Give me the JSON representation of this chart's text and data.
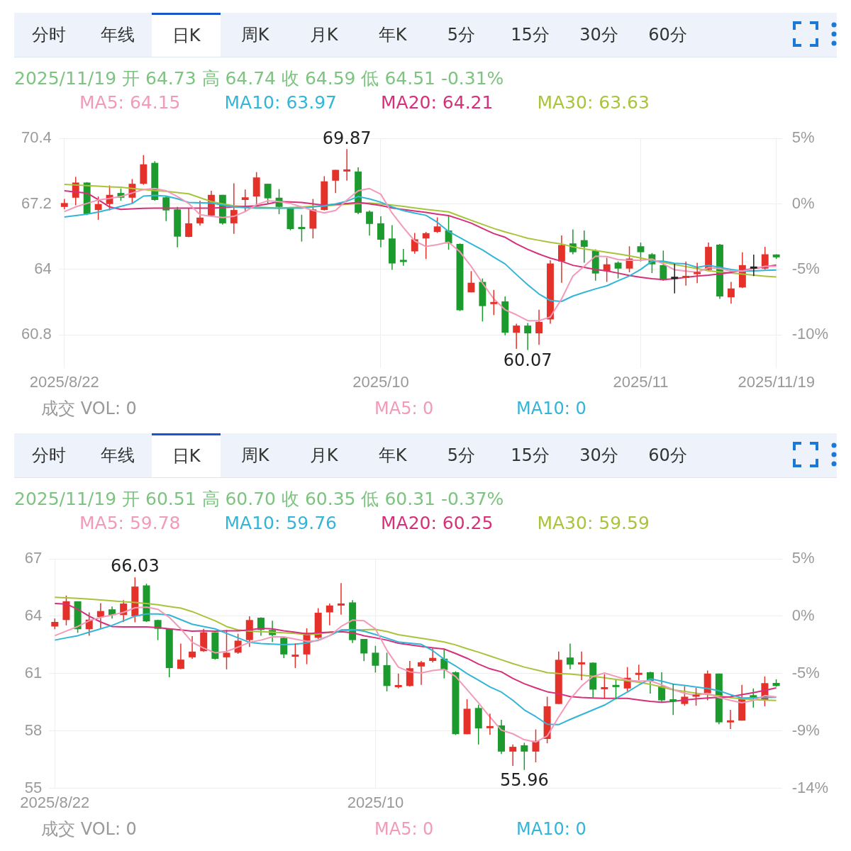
{
  "chart_data": [
    {
      "type": "candlestick",
      "title": "2025/11/19 开 64.73 高 64.74 收 64.59 低 64.51 -0.31%",
      "categories": [
        "2025/8/22",
        null,
        null,
        null,
        null,
        null,
        null,
        null,
        null,
        null,
        null,
        null,
        null,
        null,
        null,
        null,
        null,
        null,
        null,
        null,
        null,
        null,
        null,
        null,
        null,
        null,
        null,
        null,
        "2025/10",
        null,
        null,
        null,
        null,
        null,
        null,
        null,
        null,
        null,
        null,
        null,
        null,
        null,
        null,
        null,
        null,
        null,
        null,
        null,
        null,
        null,
        null,
        "2025/11",
        null,
        null,
        null,
        null,
        null,
        null,
        null,
        null,
        null,
        null,
        null,
        "2025/11/19"
      ],
      "ohlc": [
        [
          67.05,
          67.44,
          66.94,
          67.24
        ],
        [
          67.5,
          68.52,
          67.13,
          68.24
        ],
        [
          68.24,
          68.26,
          66.65,
          66.7
        ],
        [
          66.9,
          67.56,
          66.42,
          67.19
        ],
        [
          67.19,
          68.1,
          66.88,
          67.64
        ],
        [
          67.73,
          67.95,
          67.35,
          67.5
        ],
        [
          67.5,
          68.41,
          67.22,
          68.18
        ],
        [
          68.18,
          69.58,
          68.13,
          69.13
        ],
        [
          69.2,
          69.28,
          67.35,
          67.39
        ],
        [
          67.52,
          67.56,
          66.36,
          66.88
        ],
        [
          66.93,
          67.05,
          65.08,
          65.6
        ],
        [
          65.59,
          67.01,
          65.57,
          66.25
        ],
        [
          66.25,
          67.35,
          66.14,
          66.53
        ],
        [
          66.63,
          67.84,
          66.59,
          67.64
        ],
        [
          67.64,
          67.64,
          66.19,
          66.25
        ],
        [
          66.25,
          68.2,
          65.74,
          66.9
        ],
        [
          67.39,
          67.9,
          66.82,
          67.52
        ],
        [
          67.56,
          68.75,
          67.05,
          68.49
        ],
        [
          68.18,
          68.18,
          67.22,
          67.47
        ],
        [
          67.5,
          67.92,
          66.7,
          67.05
        ],
        [
          67.02,
          67.05,
          65.91,
          65.97
        ],
        [
          66.03,
          66.67,
          65.36,
          66.01
        ],
        [
          65.99,
          67.44,
          65.51,
          66.93
        ],
        [
          66.9,
          68.55,
          66.88,
          68.3
        ],
        [
          68.33,
          68.86,
          67.73,
          68.86
        ],
        [
          68.82,
          69.87,
          68.33,
          68.84
        ],
        [
          68.78,
          68.98,
          66.7,
          66.76
        ],
        [
          66.82,
          66.88,
          65.65,
          66.22
        ],
        [
          66.25,
          66.59,
          65.08,
          65.45
        ],
        [
          65.51,
          66.16,
          63.98,
          64.29
        ],
        [
          64.43,
          65.0,
          64.18,
          64.4
        ],
        [
          64.88,
          65.78,
          64.77,
          65.47
        ],
        [
          65.51,
          65.83,
          64.51,
          65.77
        ],
        [
          65.83,
          66.54,
          65.78,
          66.1
        ],
        [
          65.9,
          66.61,
          64.96,
          65.27
        ],
        [
          65.24,
          65.27,
          61.97,
          62.01
        ],
        [
          62.88,
          63.92,
          62.88,
          63.35
        ],
        [
          63.39,
          63.56,
          61.46,
          62.21
        ],
        [
          62.34,
          63.0,
          61.77,
          62.38
        ],
        [
          62.44,
          62.68,
          60.79,
          60.91
        ],
        [
          60.91,
          61.35,
          60.12,
          61.26
        ],
        [
          61.26,
          61.38,
          60.07,
          60.88
        ],
        [
          60.88,
          62.03,
          60.32,
          61.44
        ],
        [
          61.56,
          64.45,
          61.35,
          64.29
        ],
        [
          64.39,
          65.66,
          63.35,
          65.19
        ],
        [
          65.27,
          65.95,
          64.74,
          64.84
        ],
        [
          65.43,
          65.9,
          64.33,
          65.1
        ],
        [
          64.92,
          64.98,
          63.45,
          63.8
        ],
        [
          63.92,
          64.57,
          63.39,
          64.25
        ],
        [
          64.33,
          64.39,
          63.56,
          64.04
        ],
        [
          64.04,
          65.13,
          63.86,
          64.53
        ],
        [
          65.13,
          65.31,
          64.39,
          64.84
        ],
        [
          64.74,
          64.8,
          63.82,
          64.25
        ],
        [
          64.21,
          64.92,
          63.45,
          63.47
        ],
        [
          63.58,
          64.27,
          62.83,
          63.6
        ],
        [
          63.59,
          64.39,
          63.21,
          63.68
        ],
        [
          63.8,
          64.33,
          63.33,
          63.84
        ],
        [
          63.98,
          65.31,
          63.92,
          65.1
        ],
        [
          65.21,
          65.24,
          62.56,
          62.68
        ],
        [
          62.64,
          63.39,
          62.33,
          63.07
        ],
        [
          63.12,
          64.84,
          63.09,
          64.21
        ],
        [
          64.08,
          64.72,
          63.68,
          64.1
        ],
        [
          64.04,
          65.1,
          63.98,
          64.74
        ],
        [
          64.73,
          64.74,
          64.51,
          64.59
        ]
      ],
      "colors": [
        "#e4322b",
        "#e4322b",
        "#1c9a2e",
        "#e4322b",
        "#e4322b",
        "#1c9a2e",
        "#e4322b",
        "#e4322b",
        "#1c9a2e",
        "#1c9a2e",
        "#1c9a2e",
        "#e4322b",
        "#e4322b",
        "#e4322b",
        "#1c9a2e",
        "#e4322b",
        "#e4322b",
        "#e4322b",
        "#1c9a2e",
        "#1c9a2e",
        "#1c9a2e",
        "#1c9a2e",
        "#e4322b",
        "#e4322b",
        "#e4322b",
        "#e4322b",
        "#1c9a2e",
        "#1c9a2e",
        "#1c9a2e",
        "#1c9a2e",
        "#1c9a2e",
        "#e4322b",
        "#e4322b",
        "#e4322b",
        "#1c9a2e",
        "#1c9a2e",
        "#e4322b",
        "#1c9a2e",
        "#e4322b",
        "#1c9a2e",
        "#e4322b",
        "#1c9a2e",
        "#e4322b",
        "#e4322b",
        "#e4322b",
        "#1c9a2e",
        "#1c9a2e",
        "#1c9a2e",
        "#e4322b",
        "#1c9a2e",
        "#e4322b",
        "#1c9a2e",
        "#1c9a2e",
        "#1c9a2e",
        "#222222",
        "#e4322b",
        "#e4322b",
        "#e4322b",
        "#1c9a2e",
        "#e4322b",
        "#e4322b",
        "#222222",
        "#e4322b",
        "#1c9a2e"
      ],
      "series": [
        {
          "type": "line",
          "name": "MA5: 64.15",
          "color": "#f29ab8",
          "values": [
            66.82,
            67.05,
            67.22,
            67.39,
            67.47,
            67.56,
            67.73,
            67.9,
            67.95,
            67.84,
            67.56,
            67.22,
            66.67,
            66.59,
            66.53,
            66.59,
            66.82,
            67.16,
            67.35,
            67.31,
            67.22,
            67.05,
            66.88,
            66.76,
            66.88,
            67.39,
            67.84,
            67.95,
            67.67,
            66.75,
            66.04,
            65.39,
            65.12,
            65.21,
            65.33,
            64.86,
            64.15,
            63.33,
            62.56,
            62.03,
            61.79,
            61.5,
            61.5,
            61.68,
            62.56,
            63.68,
            64.15,
            64.65,
            64.63,
            64.48,
            64.45,
            64.45,
            64.51,
            64.27,
            63.98,
            63.92,
            63.86,
            64.09,
            64.04,
            63.92,
            63.92,
            64.04,
            64.15,
            64.15
          ]
        },
        {
          "type": "line",
          "name": "MA10: 63.97",
          "color": "#33b5d8",
          "values": [
            66.56,
            66.63,
            66.7,
            66.8,
            66.93,
            67.08,
            67.22,
            67.58,
            67.61,
            67.58,
            67.45,
            67.27,
            67.25,
            67.24,
            67.15,
            67.05,
            67.02,
            66.99,
            66.99,
            66.99,
            66.99,
            66.99,
            67.05,
            67.1,
            67.2,
            67.33,
            67.56,
            67.44,
            67.28,
            67.05,
            66.87,
            66.75,
            66.64,
            66.3,
            65.85,
            65.55,
            65.25,
            64.95,
            64.6,
            64.27,
            63.75,
            63.25,
            62.8,
            62.48,
            62.44,
            62.7,
            62.88,
            63.05,
            63.2,
            63.45,
            63.68,
            64.0,
            64.4,
            64.4,
            64.3,
            64.27,
            64.1,
            64.2,
            64.1,
            64.0,
            63.92,
            63.93,
            63.95,
            63.97
          ]
        },
        {
          "type": "line",
          "name": "MA20: 64.21",
          "color": "#d6307a",
          "values": [
            67.84,
            67.78,
            67.73,
            67.4,
            67.05,
            66.93,
            66.96,
            66.98,
            66.99,
            66.99,
            66.99,
            66.99,
            66.99,
            66.99,
            67.02,
            67.05,
            67.08,
            67.1,
            67.2,
            67.31,
            67.29,
            67.27,
            67.2,
            67.13,
            67.18,
            67.22,
            67.27,
            67.2,
            67.12,
            67.0,
            66.92,
            66.85,
            66.78,
            66.7,
            66.63,
            66.45,
            66.26,
            66.0,
            65.75,
            65.57,
            65.25,
            64.98,
            64.75,
            64.55,
            64.4,
            64.2,
            64.1,
            64.0,
            63.93,
            63.82,
            63.7,
            63.62,
            63.55,
            63.5,
            63.55,
            63.62,
            63.68,
            63.72,
            63.78,
            63.86,
            63.95,
            64.05,
            64.13,
            64.21
          ]
        },
        {
          "type": "line",
          "name": "MA30: 63.63",
          "color": "#a8c43a",
          "values": [
            68.15,
            68.12,
            68.09,
            68.06,
            68.03,
            68.01,
            67.95,
            67.9,
            67.85,
            67.81,
            67.75,
            67.69,
            67.5,
            67.31,
            67.2,
            67.1,
            67.07,
            67.05,
            67.02,
            66.99,
            67.02,
            67.05,
            67.08,
            67.1,
            67.14,
            67.18,
            67.22,
            67.24,
            67.2,
            67.14,
            67.08,
            67.0,
            66.93,
            66.87,
            66.81,
            66.6,
            66.4,
            66.2,
            66.0,
            65.83,
            65.68,
            65.52,
            65.42,
            65.32,
            65.24,
            65.1,
            65.0,
            64.92,
            64.84,
            64.76,
            64.66,
            64.56,
            64.44,
            64.34,
            64.24,
            64.14,
            64.04,
            63.94,
            63.88,
            63.82,
            63.77,
            63.72,
            63.67,
            63.63
          ]
        }
      ],
      "ylim": [
        59.2,
        70.4
      ],
      "yticks": [
        60.8,
        64,
        67.2,
        70.4
      ],
      "y2lim": [
        -11.9,
        4.76
      ],
      "y2ticks": [
        {
          "value": 4.76,
          "label": "5%"
        },
        {
          "value": 0,
          "label": "0%"
        },
        {
          "value": -4.76,
          "label": "-5%"
        },
        {
          "value": -9.52,
          "label": "-10%"
        }
      ],
      "grid": true,
      "legend": "top left",
      "marker": "none",
      "annotations": [
        "分时",
        "年线",
        "日K",
        "周K",
        "月K",
        "年K",
        "5分",
        "15分",
        "30分",
        "60分",
        {
          "text": "69.87",
          "y": 69.87
        },
        {
          "text": "60.07",
          "y": 60.07
        },
        "成交  VOL: 0",
        "MA5: 0",
        "MA10: 0"
      ]
    },
    {
      "type": "candlestick",
      "title": "2025/11/19 开 60.51 高 60.70 收 60.35 低 60.31 -0.37%",
      "categories": [
        "2025/8/22",
        null,
        null,
        null,
        null,
        null,
        null,
        null,
        null,
        null,
        null,
        null,
        null,
        null,
        null,
        null,
        null,
        null,
        null,
        null,
        null,
        null,
        null,
        null,
        null,
        null,
        null,
        null,
        "2025/10",
        null,
        null,
        null,
        null,
        null,
        null,
        null,
        null,
        null,
        null,
        null,
        null,
        null,
        null,
        null,
        null,
        null,
        null,
        null,
        null,
        null,
        null,
        null,
        null,
        null,
        null,
        null,
        null,
        null,
        null,
        null,
        null,
        null,
        null,
        null
      ],
      "ohlc": [
        [
          63.46,
          63.88,
          63.32,
          63.7
        ],
        [
          63.8,
          65.08,
          63.52,
          64.78
        ],
        [
          64.78,
          64.78,
          63.13,
          63.32
        ],
        [
          63.32,
          64.2,
          62.98,
          63.82
        ],
        [
          63.96,
          64.68,
          63.34,
          64.27
        ],
        [
          64.36,
          64.51,
          63.88,
          64.06
        ],
        [
          64.06,
          64.84,
          63.7,
          64.66
        ],
        [
          64.0,
          66.03,
          63.68,
          65.55
        ],
        [
          65.61,
          65.7,
          63.7,
          63.73
        ],
        [
          63.8,
          63.82,
          62.75,
          63.34
        ],
        [
          63.34,
          63.37,
          60.81,
          61.29
        ],
        [
          61.25,
          62.57,
          61.22,
          61.73
        ],
        [
          61.85,
          62.96,
          61.77,
          62.15
        ],
        [
          62.17,
          63.34,
          62.13,
          63.16
        ],
        [
          63.16,
          63.16,
          61.73,
          61.77
        ],
        [
          61.85,
          63.28,
          61.22,
          62.09
        ],
        [
          62.09,
          63.08,
          62.03,
          62.72
        ],
        [
          62.75,
          64.0,
          62.39,
          63.8
        ],
        [
          63.92,
          63.94,
          62.98,
          63.28
        ],
        [
          63.28,
          63.76,
          62.65,
          63.01
        ],
        [
          62.87,
          62.89,
          61.81,
          62.0
        ],
        [
          61.92,
          62.57,
          61.29,
          61.95
        ],
        [
          62.0,
          63.37,
          61.49,
          63.13
        ],
        [
          62.87,
          64.42,
          62.81,
          64.18
        ],
        [
          64.2,
          64.66,
          63.52,
          64.56
        ],
        [
          64.6,
          65.73,
          64.08,
          64.62
        ],
        [
          64.72,
          64.84,
          62.6,
          62.75
        ],
        [
          62.81,
          62.81,
          61.65,
          62.05
        ],
        [
          62.09,
          62.45,
          61.05,
          61.41
        ],
        [
          61.44,
          62.09,
          60.07,
          60.35
        ],
        [
          60.32,
          61.0,
          60.22,
          60.37
        ],
        [
          60.35,
          61.66,
          60.32,
          61.28
        ],
        [
          61.37,
          61.66,
          60.41,
          61.59
        ],
        [
          61.66,
          62.32,
          61.59,
          61.82
        ],
        [
          61.78,
          62.28,
          60.75,
          61.19
        ],
        [
          61.07,
          61.12,
          57.79,
          57.83
        ],
        [
          57.83,
          59.66,
          57.83,
          59.16
        ],
        [
          59.2,
          59.37,
          57.29,
          58.13
        ],
        [
          58.18,
          58.91,
          57.79,
          58.22
        ],
        [
          58.29,
          58.58,
          56.79,
          56.92
        ],
        [
          56.92,
          57.29,
          56.17,
          57.17
        ],
        [
          57.25,
          57.38,
          55.96,
          56.92
        ],
        [
          56.92,
          58.08,
          56.36,
          57.48
        ],
        [
          57.58,
          59.79,
          57.35,
          59.29
        ],
        [
          59.41,
          62.15,
          59.41,
          61.72
        ],
        [
          61.84,
          62.57,
          61.22,
          61.47
        ],
        [
          61.52,
          62.15,
          60.66,
          61.55
        ],
        [
          61.57,
          61.59,
          59.75,
          60.16
        ],
        [
          60.22,
          60.97,
          59.7,
          60.25
        ],
        [
          60.37,
          60.66,
          59.66,
          60.33
        ],
        [
          60.22,
          61.34,
          60.07,
          60.78
        ],
        [
          60.97,
          61.47,
          60.66,
          61.0
        ],
        [
          61.07,
          61.09,
          59.95,
          60.62
        ],
        [
          60.35,
          61.07,
          59.5,
          59.6
        ],
        [
          59.62,
          60.47,
          58.83,
          59.58
        ],
        [
          59.41,
          60.35,
          59.32,
          59.79
        ],
        [
          59.83,
          60.25,
          59.32,
          59.86
        ],
        [
          59.97,
          61.16,
          59.6,
          61.0
        ],
        [
          61.0,
          61.0,
          58.35,
          58.45
        ],
        [
          58.48,
          59.1,
          58.1,
          58.52
        ],
        [
          58.54,
          60.41,
          58.54,
          59.72
        ],
        [
          59.87,
          60.22,
          59.22,
          59.72
        ],
        [
          59.6,
          60.85,
          59.29,
          60.5
        ],
        [
          60.51,
          60.7,
          60.31,
          60.35
        ]
      ],
      "colors": [
        "#e4322b",
        "#e4322b",
        "#1c9a2e",
        "#e4322b",
        "#e4322b",
        "#1c9a2e",
        "#e4322b",
        "#e4322b",
        "#1c9a2e",
        "#1c9a2e",
        "#1c9a2e",
        "#e4322b",
        "#e4322b",
        "#e4322b",
        "#1c9a2e",
        "#e4322b",
        "#e4322b",
        "#e4322b",
        "#1c9a2e",
        "#1c9a2e",
        "#1c9a2e",
        "#e4322b",
        "#e4322b",
        "#e4322b",
        "#e4322b",
        "#e4322b",
        "#1c9a2e",
        "#1c9a2e",
        "#1c9a2e",
        "#1c9a2e",
        "#e4322b",
        "#e4322b",
        "#e4322b",
        "#e4322b",
        "#1c9a2e",
        "#1c9a2e",
        "#e4322b",
        "#1c9a2e",
        "#e4322b",
        "#1c9a2e",
        "#e4322b",
        "#1c9a2e",
        "#e4322b",
        "#e4322b",
        "#e4322b",
        "#1c9a2e",
        "#e4322b",
        "#1c9a2e",
        "#e4322b",
        "#1c9a2e",
        "#e4322b",
        "#e4322b",
        "#1c9a2e",
        "#1c9a2e",
        "#1c9a2e",
        "#e4322b",
        "#e4322b",
        "#e4322b",
        "#1c9a2e",
        "#e4322b",
        "#e4322b",
        "#1c9a2e",
        "#e4322b",
        "#1c9a2e"
      ],
      "series": [
        {
          "type": "line",
          "name": "MA5: 59.78",
          "color": "#f29ab8",
          "values": [
            62.98,
            63.22,
            63.46,
            63.76,
            63.94,
            64.06,
            64.2,
            64.44,
            64.48,
            64.36,
            63.94,
            63.34,
            62.63,
            62.33,
            62.09,
            62.15,
            62.39,
            62.63,
            62.75,
            62.92,
            62.92,
            62.8,
            62.69,
            62.72,
            62.98,
            63.46,
            63.8,
            63.76,
            63.34,
            62.22,
            61.34,
            61.09,
            61.03,
            61.16,
            61.22,
            60.85,
            60.16,
            59.47,
            58.73,
            58.04,
            57.85,
            57.54,
            57.42,
            57.73,
            58.73,
            59.66,
            60.35,
            60.85,
            61.03,
            60.85,
            60.66,
            60.6,
            60.62,
            60.41,
            60.16,
            59.97,
            59.85,
            59.97,
            59.75,
            59.6,
            59.47,
            59.6,
            59.85,
            59.78
          ]
        },
        {
          "type": "line",
          "name": "MA10: 59.76",
          "color": "#33b5d8",
          "values": [
            62.75,
            62.87,
            62.98,
            63.16,
            63.34,
            63.52,
            63.76,
            64.0,
            64.12,
            64.12,
            64.06,
            63.82,
            63.58,
            63.46,
            63.34,
            63.1,
            62.87,
            62.63,
            62.57,
            62.54,
            62.51,
            62.54,
            62.6,
            62.75,
            62.98,
            63.28,
            63.3,
            63.22,
            63.04,
            62.85,
            62.65,
            62.59,
            62.53,
            62.2,
            61.75,
            61.4,
            61.0,
            60.65,
            60.3,
            60.03,
            59.6,
            59.1,
            58.75,
            58.35,
            58.33,
            58.6,
            58.85,
            59.1,
            59.35,
            59.7,
            60.03,
            60.4,
            60.72,
            60.6,
            60.45,
            60.38,
            60.3,
            60.22,
            60.1,
            59.9,
            59.72,
            59.73,
            59.75,
            59.76
          ]
        },
        {
          "type": "line",
          "name": "MA20: 60.25",
          "color": "#d6307a",
          "values": [
            64.66,
            64.64,
            64.36,
            64.0,
            63.7,
            63.46,
            63.44,
            63.44,
            63.44,
            63.4,
            63.34,
            63.28,
            63.22,
            63.24,
            63.22,
            63.24,
            63.24,
            63.28,
            63.37,
            63.34,
            63.24,
            63.16,
            63.08,
            63.13,
            63.16,
            63.19,
            63.13,
            62.98,
            62.87,
            62.75,
            62.59,
            62.5,
            62.42,
            62.35,
            62.28,
            62.05,
            61.8,
            61.5,
            61.25,
            61.09,
            60.75,
            60.47,
            60.25,
            60.05,
            59.95,
            59.8,
            59.75,
            59.72,
            59.7,
            59.7,
            59.7,
            59.62,
            59.55,
            59.5,
            59.55,
            59.62,
            59.68,
            59.72,
            59.76,
            59.79,
            59.9,
            60.0,
            60.12,
            60.25
          ]
        },
        {
          "type": "line",
          "name": "MA30: 59.59",
          "color": "#a8c43a",
          "values": [
            64.99,
            64.96,
            64.93,
            64.9,
            64.85,
            64.8,
            64.76,
            64.72,
            64.66,
            64.6,
            64.51,
            64.42,
            64.24,
            64.0,
            63.76,
            63.46,
            63.28,
            63.22,
            63.19,
            63.16,
            63.13,
            63.1,
            63.04,
            63.07,
            63.16,
            63.22,
            63.28,
            63.29,
            63.31,
            63.2,
            63.03,
            62.94,
            62.85,
            62.75,
            62.65,
            62.5,
            62.3,
            62.12,
            61.92,
            61.72,
            61.52,
            61.34,
            61.2,
            61.05,
            61.0,
            60.97,
            60.92,
            60.85,
            60.78,
            60.7,
            60.62,
            60.55,
            60.44,
            60.3,
            60.15,
            60.07,
            59.97,
            59.91,
            59.83,
            59.74,
            59.68,
            59.64,
            59.61,
            59.59
          ]
        }
      ],
      "ylim": [
        55,
        67
      ],
      "yticks": [
        55,
        58,
        61,
        64,
        67
      ],
      "y2lim": [
        -14.06,
        4.69
      ],
      "y2ticks": [
        {
          "value": 4.69,
          "label": "5%"
        },
        {
          "value": 0,
          "label": "0%"
        },
        {
          "value": -4.69,
          "label": "-5%"
        },
        {
          "value": -9.38,
          "label": "-9%"
        },
        {
          "value": -14.06,
          "label": "-14%"
        }
      ],
      "grid": true,
      "legend": "top left",
      "marker": "none",
      "annotations": [
        "分时",
        "年线",
        "日K",
        "周K",
        "月K",
        "年K",
        "5分",
        "15分",
        "30分",
        "60分",
        {
          "text": "66.03",
          "y": 66.03
        },
        {
          "text": "55.96",
          "y": 55.96
        },
        "成交  VOL: 0",
        "MA5: 0",
        "MA10: 0"
      ]
    }
  ]
}
